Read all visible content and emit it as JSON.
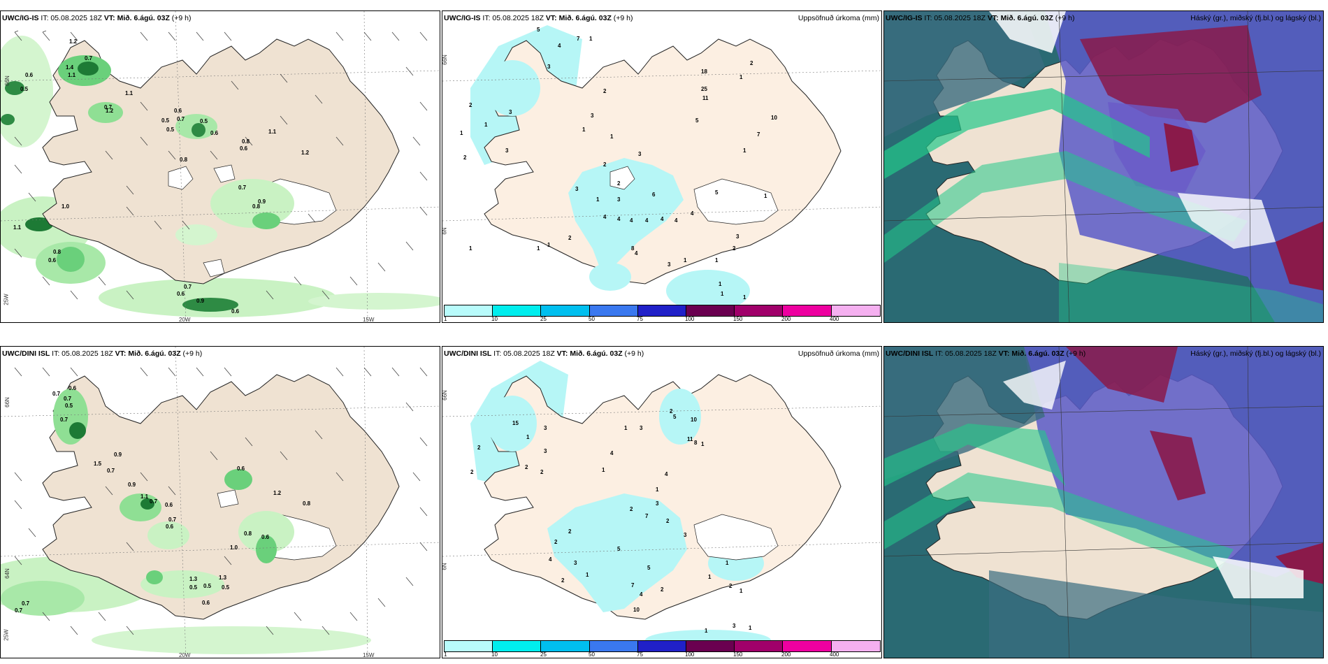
{
  "panels": {
    "a": {
      "model": "UWC/IG-IS",
      "it": "IT: 05.08.2025 18Z",
      "vt_label": "VT:",
      "vt": "Mið. 6.ágú. 03Z",
      "lead": "(+9 h)",
      "right_title": ""
    },
    "b": {
      "model": "UWC/IG-IS",
      "it": "IT: 05.08.2025 18Z",
      "vt_label": "VT:",
      "vt": "Mið. 6.ágú. 03Z",
      "lead": "(+9 h)",
      "right_title": "Uppsöfnuð úrkoma (mm)"
    },
    "c": {
      "model": "UWC/IG-IS",
      "it": "IT: 05.08.2025 18Z",
      "vt_label": "VT:",
      "vt": "Mið. 6.ágú. 03Z",
      "lead": "(+9 h)",
      "right_title": "Háský (gr.), miðský (fj.bl.) og lágský (bl.)"
    },
    "d": {
      "model": "UWC/DINI ISL",
      "it": "IT: 05.08.2025 18Z",
      "vt_label": "VT:",
      "vt": "Mið. 6.ágú. 03Z",
      "lead": "(+9 h)",
      "right_title": ""
    },
    "e": {
      "model": "UWC/DINI ISL",
      "it": "IT: 05.08.2025 18Z",
      "vt_label": "VT:",
      "vt": "Mið. 6.ágú. 03Z",
      "lead": "(+9 h)",
      "right_title": "Uppsöfnuð úrkoma (mm)"
    },
    "f": {
      "model": "UWC/DINI ISL",
      "it": "IT: 05.08.2025 18Z",
      "vt_label": "VT:",
      "vt": "Mið. 6.ágú. 03Z",
      "lead": "(+9 h)",
      "right_title": "Háský (gr.), miðský (fj.bl.) og lágský (bl.)"
    }
  },
  "grid_labels": {
    "lat_66": "66N",
    "lat_64": "64N",
    "lon_20": "20W",
    "lon_15": "15W",
    "lon_25": "25W",
    "lon_6": "6N"
  },
  "legend": {
    "ticks": [
      "1",
      "10",
      "25",
      "50",
      "75",
      "100",
      "150",
      "200",
      "400"
    ],
    "colors": [
      "#b8fbfb",
      "#00eeee",
      "#00bfef",
      "#3a78ef",
      "#2020c8",
      "#6a0050",
      "#a0006a",
      "#ee00a0",
      "#f5b0f0"
    ]
  },
  "colors": {
    "land": "#efe2d2",
    "precip_green_light": "#c9f2c3",
    "precip_green": "#6ad07b",
    "precip_green_dark": "#1d7a35",
    "accum_cyan": "#b6f6f6",
    "cloud_low": "#2a6a73",
    "cloud_mid": "#5a5ac8",
    "cloud_high": "#8a1a4a",
    "cloud_green": "#23c98a"
  },
  "values": {
    "a": [
      "1.2",
      "0.7",
      "0.6",
      "1.1",
      "0.5",
      "0.5",
      "0.7",
      "0.6",
      "0.7",
      "1.1",
      "0.6",
      "0.5",
      "0.8",
      "0.6",
      "1.1",
      "1.2",
      "0.7",
      "0.8",
      "0.9",
      "1.0",
      "1.1",
      "0.8",
      "0.6",
      "0.7",
      "0.6",
      "0.9",
      "0.6",
      "0.5",
      "0.8",
      "1.4",
      "1.2"
    ],
    "b": [
      "5",
      "7",
      "1",
      "4",
      "3",
      "2",
      "3",
      "1",
      "2",
      "3",
      "1",
      "3",
      "1",
      "2",
      "1",
      "3",
      "2",
      "2",
      "3",
      "1",
      "3",
      "6",
      "4",
      "4",
      "4",
      "4",
      "4",
      "4",
      "4",
      "2",
      "1",
      "1",
      "1",
      "8",
      "4",
      "3",
      "1",
      "5",
      "11",
      "25",
      "18",
      "2",
      "1",
      "10",
      "7",
      "1",
      "5",
      "1",
      "3",
      "2",
      "1",
      "1",
      "1",
      "1"
    ],
    "d": [
      "0.6",
      "0.7",
      "0.7",
      "0.5",
      "0.7",
      "0.9",
      "1.5",
      "0.7",
      "0.9",
      "1.1",
      "0.7",
      "0.6",
      "0.7",
      "0.6",
      "0.6",
      "1.2",
      "0.8",
      "1.0",
      "0.8",
      "0.6",
      "1.3",
      "0.5",
      "0.5",
      "1.3",
      "0.5",
      "0.6",
      "0.7",
      "0.7"
    ],
    "e": [
      "15",
      "2",
      "3",
      "1",
      "2",
      "3",
      "4",
      "1",
      "2",
      "2",
      "1",
      "3",
      "2",
      "5",
      "10",
      "11",
      "8",
      "1",
      "4",
      "1",
      "3",
      "2",
      "7",
      "2",
      "3",
      "2",
      "2",
      "4",
      "3",
      "5",
      "2",
      "1",
      "5",
      "7",
      "4",
      "2",
      "10",
      "1",
      "1",
      "2",
      "1",
      "3",
      "1",
      "1"
    ]
  }
}
